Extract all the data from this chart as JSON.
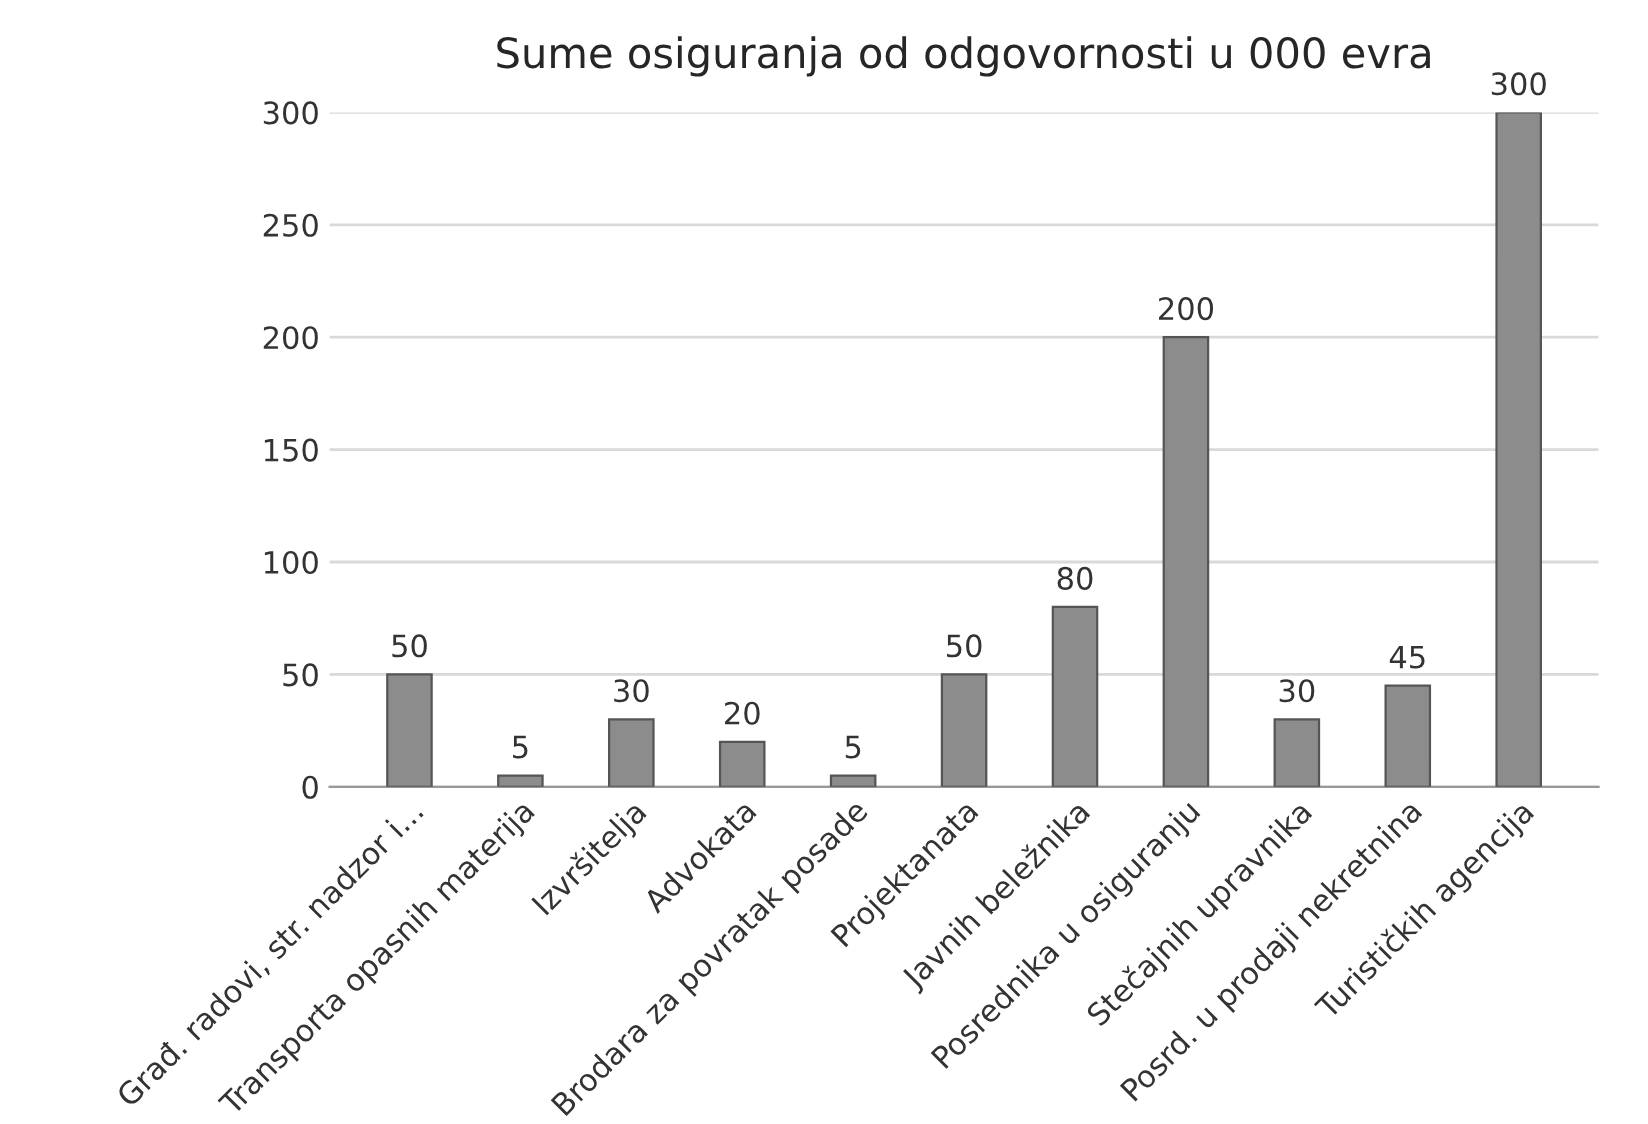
{
  "chart_data": {
    "type": "bar",
    "title": "Sume osiguranja od odgovornosti u 000 evra",
    "categories": [
      "Građ. radovi, str. nadzor i...",
      "Transporta opasnih materija",
      "Izvršitelja",
      "Advokata",
      "Brodara za povratak posade",
      "Projektanata",
      "Javnih beležnika",
      "Posrednika u osiguranju",
      "Stečajnih upravnika",
      "Posrd. u prodaji nekretnina",
      "Turističkih agencija"
    ],
    "values": [
      50,
      5,
      30,
      20,
      5,
      50,
      80,
      200,
      30,
      45,
      300
    ],
    "color": "#8c8c8c",
    "ylim": [
      0,
      300
    ],
    "yticks": [
      0,
      50,
      100,
      150,
      200,
      250,
      300
    ],
    "grid": "y",
    "data_labels": true
  }
}
